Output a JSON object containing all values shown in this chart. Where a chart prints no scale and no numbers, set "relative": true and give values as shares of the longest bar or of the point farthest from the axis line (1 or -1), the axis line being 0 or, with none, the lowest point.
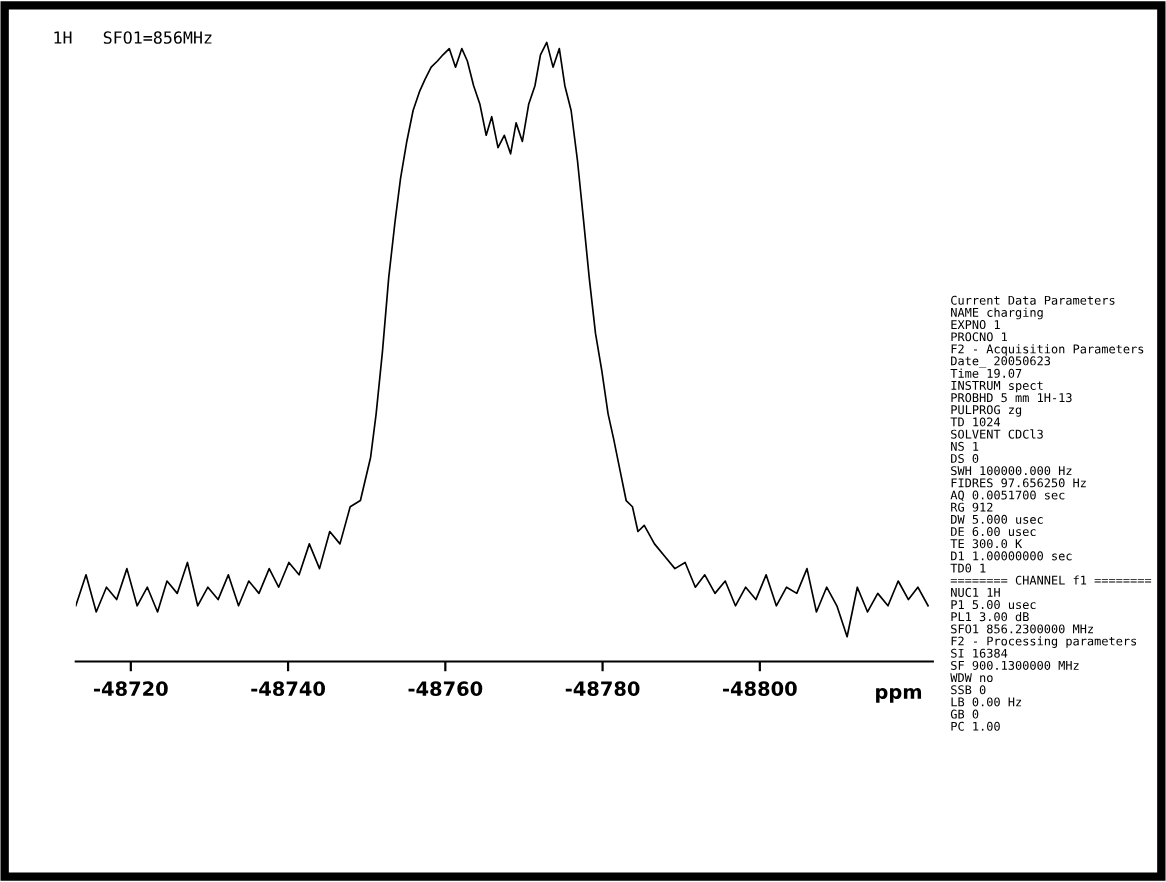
{
  "chart_data": {
    "type": "line",
    "relative": true,
    "color": "#000000",
    "xlabel": "ppm",
    "xlim": [
      -48713,
      -48822
    ],
    "xticks": [
      -48720,
      -48740,
      -48760,
      -48780,
      -48800
    ],
    "x": [
      -48713.0,
      -48714.3,
      -48715.6,
      -48716.9,
      -48718.2,
      -48719.5,
      -48720.8,
      -48722.1,
      -48723.4,
      -48724.6,
      -48725.9,
      -48727.2,
      -48728.5,
      -48729.8,
      -48731.1,
      -48732.4,
      -48733.7,
      -48735.0,
      -48736.3,
      -48737.6,
      -48738.8,
      -48740.1,
      -48741.4,
      -48742.7,
      -48744.0,
      -48745.3,
      -48746.6,
      -48747.9,
      -48749.2,
      -48750.5,
      -48751.2,
      -48752.0,
      -48752.8,
      -48753.6,
      -48754.3,
      -48755.1,
      -48755.9,
      -48756.7,
      -48757.4,
      -48758.2,
      -48759.0,
      -48759.7,
      -48760.5,
      -48761.3,
      -48762.1,
      -48762.8,
      -48763.6,
      -48764.4,
      -48765.2,
      -48765.9,
      -48766.7,
      -48767.5,
      -48768.3,
      -48769.0,
      -48769.8,
      -48770.6,
      -48771.4,
      -48772.1,
      -48772.9,
      -48773.7,
      -48774.5,
      -48775.2,
      -48776.0,
      -48776.8,
      -48777.6,
      -48778.3,
      -48779.1,
      -48779.9,
      -48780.7,
      -48781.4,
      -48782.2,
      -48783.0,
      -48783.8,
      -48784.5,
      -48785.3,
      -48786.6,
      -48787.9,
      -48789.2,
      -48790.5,
      -48791.8,
      -48793.0,
      -48794.3,
      -48795.6,
      -48796.9,
      -48798.2,
      -48799.5,
      -48800.8,
      -48802.1,
      -48803.4,
      -48804.7,
      -48806.0,
      -48807.2,
      -48808.5,
      -48809.8,
      -48811.1,
      -48812.4,
      -48813.7,
      -48815.0,
      -48816.3,
      -48817.6,
      -48818.9,
      -48820.1,
      -48821.4
    ],
    "values": [
      0.09,
      0.14,
      0.08,
      0.12,
      0.1,
      0.15,
      0.09,
      0.12,
      0.08,
      0.13,
      0.11,
      0.16,
      0.09,
      0.12,
      0.1,
      0.14,
      0.09,
      0.13,
      0.11,
      0.15,
      0.12,
      0.16,
      0.14,
      0.19,
      0.15,
      0.21,
      0.19,
      0.25,
      0.26,
      0.33,
      0.4,
      0.5,
      0.62,
      0.71,
      0.78,
      0.84,
      0.89,
      0.92,
      0.94,
      0.96,
      0.97,
      0.98,
      0.99,
      0.96,
      0.99,
      0.97,
      0.93,
      0.9,
      0.85,
      0.88,
      0.83,
      0.85,
      0.82,
      0.87,
      0.84,
      0.9,
      0.93,
      0.98,
      1.0,
      0.96,
      0.99,
      0.93,
      0.89,
      0.81,
      0.71,
      0.62,
      0.53,
      0.47,
      0.4,
      0.36,
      0.31,
      0.26,
      0.25,
      0.21,
      0.22,
      0.19,
      0.17,
      0.15,
      0.16,
      0.12,
      0.14,
      0.11,
      0.13,
      0.09,
      0.12,
      0.1,
      0.14,
      0.09,
      0.12,
      0.11,
      0.15,
      0.08,
      0.12,
      0.09,
      0.04,
      0.12,
      0.08,
      0.11,
      0.09,
      0.13,
      0.1,
      0.12,
      0.09
    ],
    "annotations": [
      "1H   SFO1=856MHz",
      "Current Data Parameters",
      "NAME charging",
      "EXPNO 1",
      "PROCNO 1",
      "F2 - Acquisition Parameters",
      "Date_ 20050623",
      "Time 19.07",
      "INSTRUM spect",
      "PROBHD 5 mm 1H-13",
      "PULPROG zg",
      "TD 1024",
      "SOLVENT CDCl3",
      "NS 1",
      "DS 0",
      "SWH 100000.000 Hz",
      "FIDRES 97.656250 Hz",
      "AQ 0.0051700 sec",
      "RG 912",
      "DW 5.000 usec",
      "DE 6.00 usec",
      "TE 300.0 K",
      "D1 1.00000000 sec",
      "TD0 1",
      "======== CHANNEL f1 ========",
      "NUC1 1H",
      "P1 5.00 usec",
      "PL1 3.00 dB",
      "SFO1 856.2300000 MHz",
      "F2 - Processing parameters",
      "SI 16384",
      "SF 900.1300000 MHz",
      "WDW no",
      "SSB 0",
      "LB 0.00 Hz",
      "GB 0",
      "PC 1.00"
    ]
  }
}
